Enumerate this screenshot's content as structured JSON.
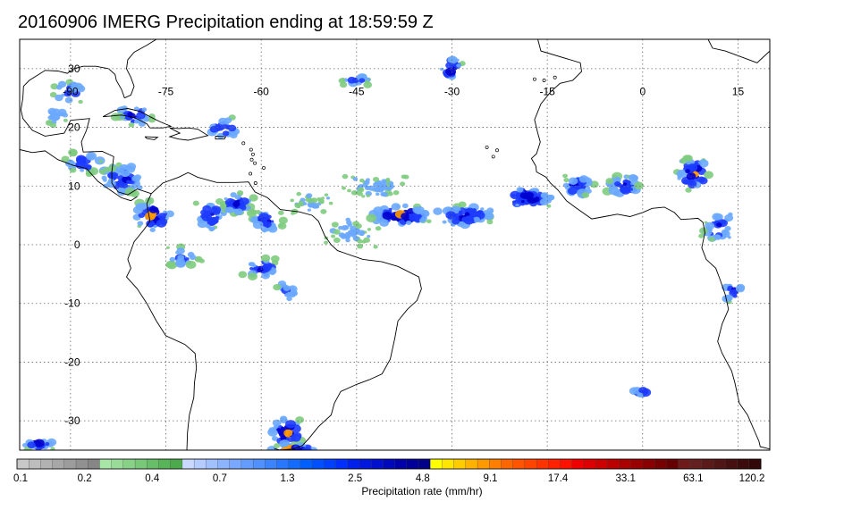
{
  "title": "20160906 IMERG Precipitation ending at 18:59:59 Z",
  "map": {
    "lon_range": [
      -98,
      20
    ],
    "lat_range": [
      -35,
      35
    ],
    "lon_ticks": [
      -90,
      -75,
      -60,
      -45,
      -30,
      -15,
      0,
      15
    ],
    "lon_tick_labels": [
      "-90",
      "-75",
      "-60",
      "-45",
      "-30",
      "-15",
      "0",
      "15"
    ],
    "lat_ticks": [
      30,
      20,
      10,
      0,
      -10,
      -20,
      -30
    ],
    "lat_tick_labels": [
      "30",
      "20",
      "10",
      "0",
      "-10",
      "-20",
      "-30"
    ],
    "grid": true,
    "gridline_style": "dotted",
    "coastline_color": "#000000"
  },
  "colorbar": {
    "label": "Precipitation rate (mm/hr)",
    "tick_labels": [
      "0.1",
      "0.2",
      "0.4",
      "0.7",
      "1.3",
      "2.5",
      "4.8",
      "9.1",
      "17.4",
      "33.1",
      "63.1",
      "120.2"
    ],
    "colors": [
      "#c8c8c8",
      "#bdbdbd",
      "#b2b2b2",
      "#a7a7a7",
      "#9c9c9c",
      "#919191",
      "#868686",
      "#a8e6a8",
      "#98dc98",
      "#88d288",
      "#78c878",
      "#68be68",
      "#58b458",
      "#4caa4c",
      "#c8d8ff",
      "#b4ccff",
      "#a0c0ff",
      "#8cb4ff",
      "#78a8ff",
      "#649cff",
      "#5090ff",
      "#3c84ff",
      "#2878ff",
      "#146cff",
      "#0060ff",
      "#0050ff",
      "#0040ff",
      "#0030ff",
      "#0020ee",
      "#0018dd",
      "#0010cc",
      "#0008bb",
      "#0000aa",
      "#000099",
      "#000088",
      "#ffff00",
      "#ffe600",
      "#ffcc00",
      "#ffb300",
      "#ff9900",
      "#ff8000",
      "#ff6600",
      "#ff5500",
      "#ff4400",
      "#ff3300",
      "#ff2200",
      "#ff1100",
      "#ee0000",
      "#dd0000",
      "#cc0000",
      "#bb0000",
      "#aa0000",
      "#990000",
      "#880000",
      "#770000",
      "#660000",
      "#6e1a1a",
      "#642020",
      "#5a1a1a",
      "#501515",
      "#461010",
      "#3c0c0c",
      "#320808"
    ]
  },
  "legend_palette": {
    "light": "#7ecb7e",
    "moderate": "#6aa8ff",
    "heavy": "#1e3cff",
    "very_heavy": "#0000cc",
    "intense": "#ff9900",
    "extreme": "#ff2200"
  }
}
